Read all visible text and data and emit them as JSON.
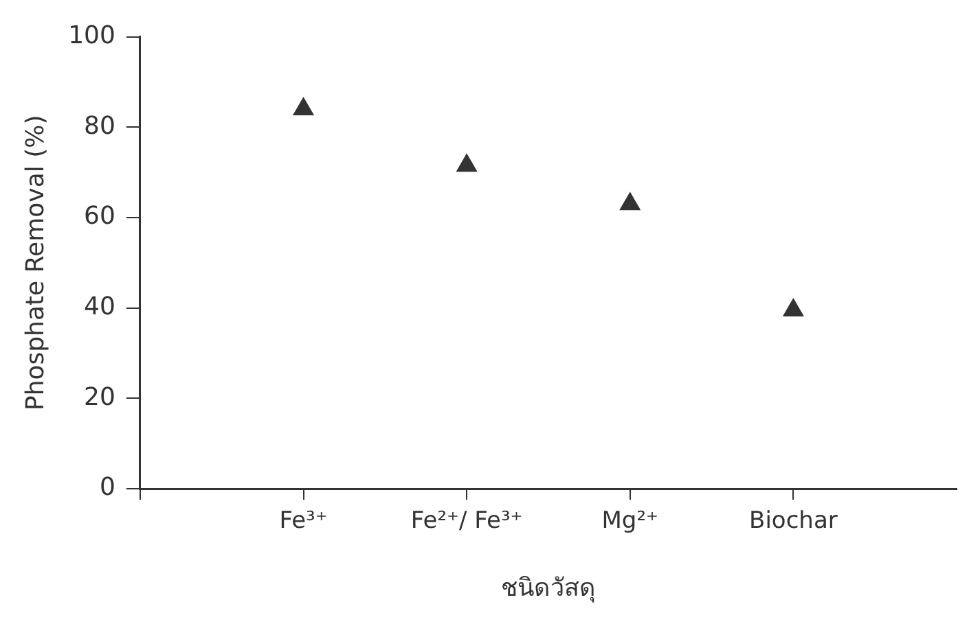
{
  "chart_data": {
    "type": "scatter",
    "categories": [
      "Fe³⁺",
      "Fe²⁺/ Fe³⁺",
      "Mg²⁺",
      "Biochar"
    ],
    "series": [
      {
        "color": "#333333",
        "values": [
          84,
          71.5,
          63,
          39.5
        ]
      }
    ],
    "marker": "triangle",
    "xlabel": "ชนิดวัสดุ",
    "ylabel": "Phosphate Removal (%)",
    "ylim": [
      0,
      100
    ],
    "yticks": [
      0,
      20,
      40,
      60,
      80,
      100
    ]
  }
}
